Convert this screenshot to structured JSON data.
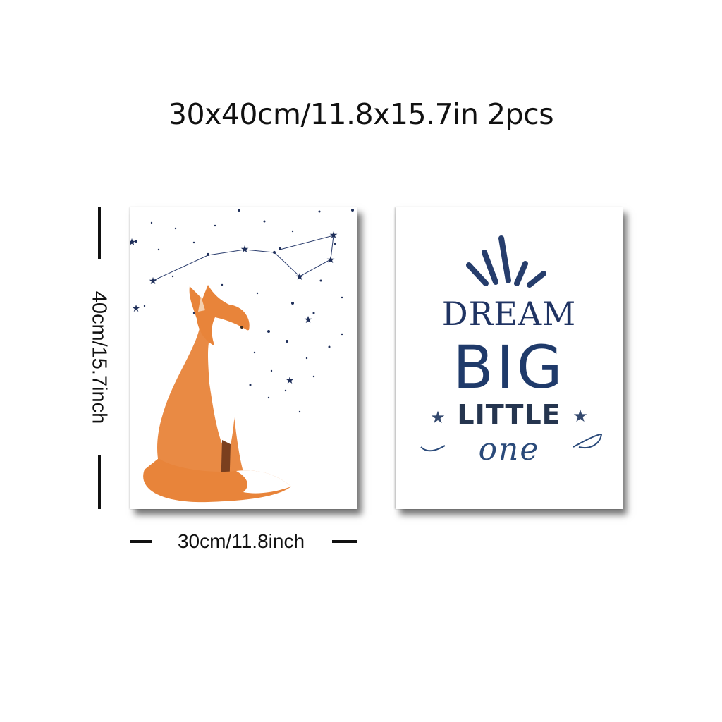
{
  "title": "30x40cm/11.8x15.7in 2pcs",
  "dimensions": {
    "height_label": "40cm/15.7inch",
    "width_label": "30cm/11.8inch"
  },
  "posters": {
    "fox": {
      "illustration": "fox-looking-at-constellation",
      "colors": {
        "fox": "#e8843a",
        "stars": "#1f2f5a"
      }
    },
    "quote": {
      "line1": "DREAM",
      "line2": "BIG",
      "line3": "LITTLE",
      "line4": "one",
      "colors": {
        "text": "#243e6b"
      }
    }
  }
}
